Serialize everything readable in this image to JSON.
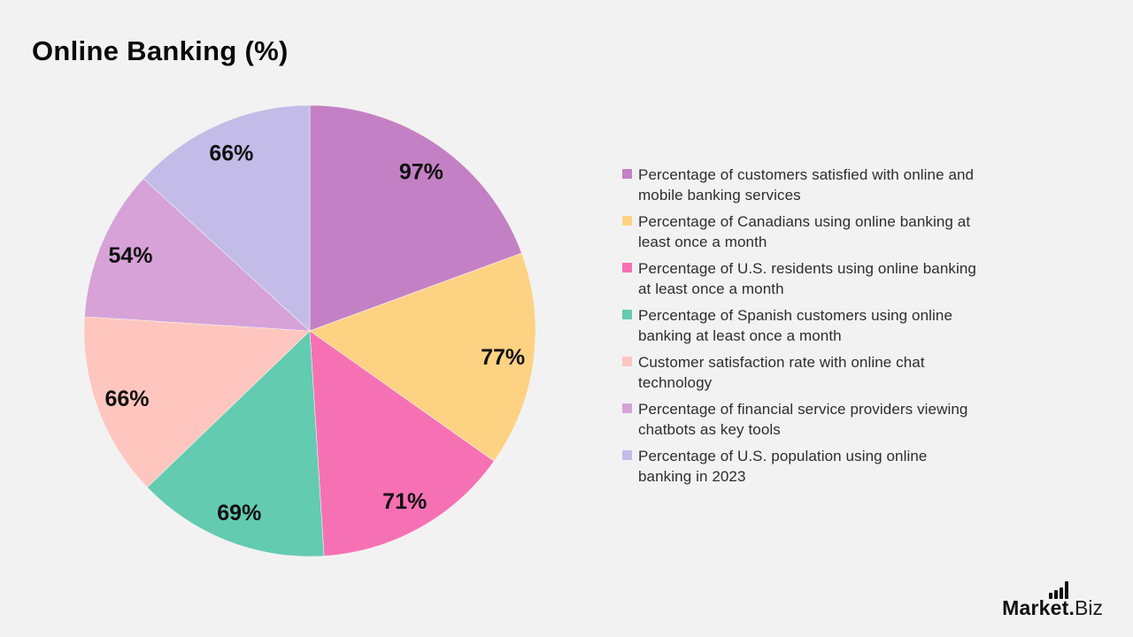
{
  "page": {
    "background_color": "#f2f2f2"
  },
  "header": {
    "title": "Online Banking (%)"
  },
  "chart_data": {
    "type": "pie",
    "title": "Online Banking (%)",
    "legend_position": "right",
    "start_angle": "top",
    "direction": "clockwise",
    "value_unit": "%",
    "values_total": 500,
    "slices": [
      {
        "label": "Percentage of customers satisfied with online and mobile banking services",
        "label_lines": [
          "Percentage of customers satisfied with online and",
          "mobile banking services"
        ],
        "value": 97,
        "value_label": "97%",
        "color": "#c480c4"
      },
      {
        "label": "Percentage of Canadians using online banking at least once a month",
        "label_lines": [
          "Percentage of Canadians using online banking at",
          "least once a month"
        ],
        "value": 77,
        "value_label": "77%",
        "color": "#fed283"
      },
      {
        "label": "Percentage of U.S. residents using online banking at least once a month",
        "label_lines": [
          "Percentage of U.S. residents using online banking",
          "at least once a month"
        ],
        "value": 71,
        "value_label": "71%",
        "color": "#f671b4"
      },
      {
        "label": "Percentage of Spanish customers using online banking at least once a month",
        "label_lines": [
          "Percentage of Spanish customers using online",
          "banking at least once a month"
        ],
        "value": 69,
        "value_label": "69%",
        "color": "#63cbb0"
      },
      {
        "label": "Customer satisfaction rate with online chat technology",
        "label_lines": [
          "Customer satisfaction rate with online chat",
          "technology"
        ],
        "value": 66,
        "value_label": "66%",
        "color": "#ffc6bf"
      },
      {
        "label": "Percentage of financial service providers viewing chatbots as key tools",
        "label_lines": [
          "Percentage of financial service providers viewing",
          "chatbots as key tools"
        ],
        "value": 54,
        "value_label": "54%",
        "color": "#d6a2d8"
      },
      {
        "label": "Percentage of U.S. population using online banking in 2023",
        "label_lines": [
          "Percentage of U.S. population using online",
          "banking in 2023"
        ],
        "value": 66,
        "value_label": "66%",
        "color": "#c3bce8"
      }
    ]
  },
  "footer": {
    "brand_bold": "Market.",
    "brand_light": "Biz"
  }
}
